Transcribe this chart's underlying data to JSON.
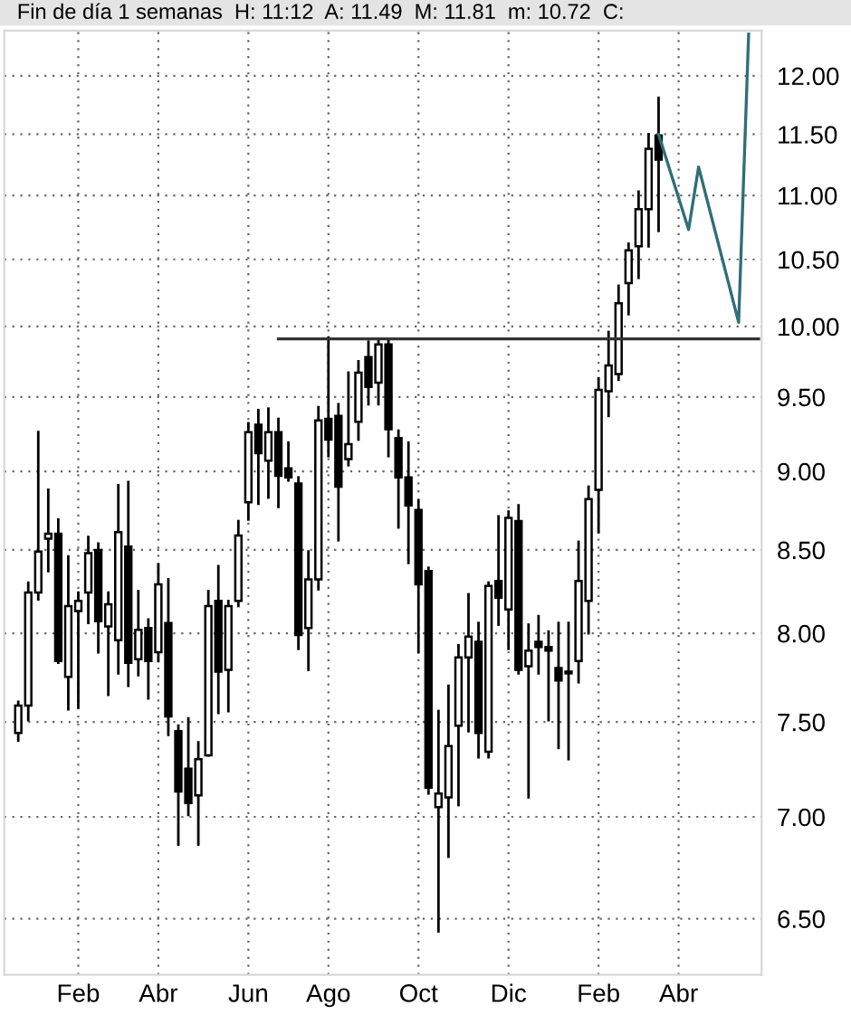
{
  "chart_data": {
    "type": "candlestick",
    "title": "Fin de día 1 semanas  H: 11:12  A: 11.49  M: 11.81  m: 10.72  C:",
    "categories": [
      null,
      null,
      null,
      null,
      null,
      null,
      "Feb",
      null,
      null,
      null,
      null,
      null,
      null,
      null,
      "Abr",
      null,
      null,
      null,
      null,
      null,
      null,
      null,
      null,
      "Jun",
      null,
      null,
      null,
      null,
      null,
      null,
      null,
      "Ago",
      null,
      null,
      null,
      null,
      null,
      null,
      null,
      null,
      "Oct",
      null,
      null,
      null,
      null,
      null,
      null,
      null,
      null,
      "Dic",
      null,
      null,
      null,
      null,
      null,
      null,
      null,
      null,
      "Feb",
      null,
      null,
      null,
      null,
      null,
      null,
      null,
      "Abr",
      null,
      null,
      null,
      null,
      null,
      null,
      null,
      null
    ],
    "ohlc": [
      [
        7.44,
        7.61,
        7.4,
        7.59
      ],
      [
        7.59,
        8.3,
        7.51,
        8.24
      ],
      [
        8.24,
        9.26,
        8.2,
        8.49
      ],
      [
        8.57,
        8.88,
        8.37,
        8.6
      ],
      [
        8.6,
        8.69,
        7.83,
        7.84
      ],
      [
        7.75,
        8.46,
        7.57,
        8.16
      ],
      [
        8.13,
        8.24,
        7.58,
        8.19
      ],
      [
        8.24,
        8.58,
        8.06,
        8.48
      ],
      [
        8.5,
        8.54,
        7.89,
        8.07
      ],
      [
        8.04,
        8.24,
        7.65,
        8.17
      ],
      [
        7.96,
        8.91,
        7.77,
        8.61
      ],
      [
        8.52,
        8.93,
        7.7,
        7.83
      ],
      [
        7.85,
        8.25,
        7.76,
        8.02
      ],
      [
        8.03,
        8.08,
        7.63,
        7.84
      ],
      [
        7.89,
        8.41,
        7.84,
        8.29
      ],
      [
        8.06,
        8.32,
        7.43,
        7.53
      ],
      [
        7.45,
        7.48,
        6.86,
        7.13
      ],
      [
        7.25,
        7.52,
        7.01,
        7.07
      ],
      [
        7.11,
        7.39,
        6.86,
        7.3
      ],
      [
        7.32,
        8.25,
        7.32,
        8.16
      ],
      [
        8.19,
        8.4,
        7.55,
        7.78
      ],
      [
        7.79,
        8.19,
        7.56,
        8.16
      ],
      [
        8.19,
        8.68,
        8.16,
        8.59
      ],
      [
        8.8,
        9.32,
        8.69,
        9.26
      ],
      [
        9.31,
        9.41,
        8.79,
        9.12
      ],
      [
        9.07,
        9.42,
        8.83,
        9.26
      ],
      [
        9.26,
        9.35,
        8.77,
        8.97
      ],
      [
        9.02,
        9.19,
        8.94,
        8.96
      ],
      [
        8.92,
        8.96,
        7.91,
        7.99
      ],
      [
        8.03,
        8.49,
        7.79,
        8.32
      ],
      [
        8.32,
        9.43,
        8.26,
        9.34
      ],
      [
        9.35,
        9.92,
        9.1,
        9.21
      ],
      [
        9.37,
        9.45,
        8.56,
        8.9
      ],
      [
        9.08,
        9.67,
        9.04,
        9.18
      ],
      [
        9.33,
        9.75,
        9.21,
        9.67
      ],
      [
        9.78,
        9.89,
        9.45,
        9.57
      ],
      [
        9.6,
        9.91,
        9.45,
        9.87
      ],
      [
        9.87,
        9.91,
        9.1,
        9.28
      ],
      [
        9.22,
        9.27,
        8.64,
        8.96
      ],
      [
        8.96,
        9.19,
        8.42,
        8.78
      ],
      [
        8.75,
        8.81,
        7.89,
        8.29
      ],
      [
        8.37,
        8.39,
        7.12,
        7.15
      ],
      [
        7.05,
        7.56,
        6.44,
        7.12
      ],
      [
        7.1,
        7.7,
        6.8,
        7.37
      ],
      [
        7.48,
        7.93,
        7.06,
        7.86
      ],
      [
        7.86,
        8.23,
        7.45,
        7.98
      ],
      [
        7.95,
        8.06,
        7.31,
        7.44
      ],
      [
        7.34,
        8.3,
        7.31,
        8.28
      ],
      [
        8.31,
        8.71,
        8.05,
        8.21
      ],
      [
        8.14,
        8.74,
        7.91,
        8.7
      ],
      [
        8.68,
        8.78,
        7.77,
        7.79
      ],
      [
        7.81,
        8.05,
        7.1,
        7.9
      ],
      [
        7.95,
        8.1,
        7.77,
        7.92
      ],
      [
        7.92,
        8.01,
        7.51,
        7.9
      ],
      [
        7.8,
        8.06,
        7.36,
        7.73
      ],
      [
        7.78,
        8.06,
        7.3,
        7.77
      ],
      [
        7.84,
        8.55,
        7.72,
        8.31
      ],
      [
        8.19,
        8.9,
        8.0,
        8.82
      ],
      [
        8.88,
        9.63,
        8.61,
        9.55
      ],
      [
        9.54,
        9.96,
        9.37,
        9.72
      ],
      [
        9.66,
        10.3,
        9.62,
        10.17
      ],
      [
        10.32,
        10.62,
        10.09,
        10.57
      ],
      [
        10.6,
        11.03,
        10.36,
        10.89
      ],
      [
        10.89,
        11.5,
        10.6,
        11.38
      ],
      [
        11.49,
        11.81,
        10.72,
        11.29
      ],
      null,
      null,
      null,
      null,
      null,
      null,
      null,
      null,
      null,
      null
    ],
    "series": [
      {
        "type": "line",
        "color": "#333333",
        "values": [
          null,
          null,
          null,
          null,
          null,
          null,
          null,
          null,
          null,
          null,
          null,
          null,
          null,
          null,
          null,
          null,
          null,
          null,
          null,
          null,
          null,
          null,
          null,
          null,
          null,
          null,
          9.91,
          null,
          null,
          null,
          null,
          null,
          null,
          null,
          null,
          null,
          null,
          null,
          null,
          null,
          null,
          null,
          null,
          null,
          null,
          null,
          null,
          null,
          null,
          null,
          null,
          null,
          null,
          null,
          null,
          null,
          null,
          null,
          null,
          null,
          null,
          null,
          null,
          null,
          null,
          null,
          null,
          null,
          null,
          null,
          null,
          null,
          null,
          null,
          9.91
        ]
      },
      {
        "type": "line",
        "color": "#2f6f78",
        "values": [
          null,
          null,
          null,
          null,
          null,
          null,
          null,
          null,
          null,
          null,
          null,
          null,
          null,
          null,
          null,
          null,
          null,
          null,
          null,
          null,
          null,
          null,
          null,
          null,
          null,
          null,
          null,
          null,
          null,
          null,
          null,
          null,
          null,
          null,
          null,
          null,
          null,
          null,
          null,
          null,
          null,
          null,
          null,
          null,
          null,
          null,
          null,
          null,
          null,
          null,
          null,
          null,
          null,
          null,
          null,
          null,
          null,
          null,
          null,
          null,
          null,
          null,
          null,
          null,
          11.5,
          null,
          null,
          10.73,
          11.23,
          null,
          null,
          null,
          10.03,
          12.37,
          null
        ]
      }
    ],
    "log": "y",
    "ylim": [
      6.24,
      12.4
    ],
    "yticks": [
      {
        "value": 6.5,
        "label": "6.50"
      },
      {
        "value": 7.0,
        "label": "7.00"
      },
      {
        "value": 7.5,
        "label": "7.50"
      },
      {
        "value": 8.0,
        "label": "8.00"
      },
      {
        "value": 8.5,
        "label": "8.50"
      },
      {
        "value": 9.0,
        "label": "9.00"
      },
      {
        "value": 9.5,
        "label": "9.50"
      },
      {
        "value": 10.0,
        "label": "10.00"
      },
      {
        "value": 10.5,
        "label": "10.50"
      },
      {
        "value": 11.0,
        "label": "11.00"
      },
      {
        "value": 11.5,
        "label": "11.50"
      },
      {
        "value": 12.0,
        "label": "12.00"
      }
    ],
    "grid": true,
    "legend": false
  }
}
